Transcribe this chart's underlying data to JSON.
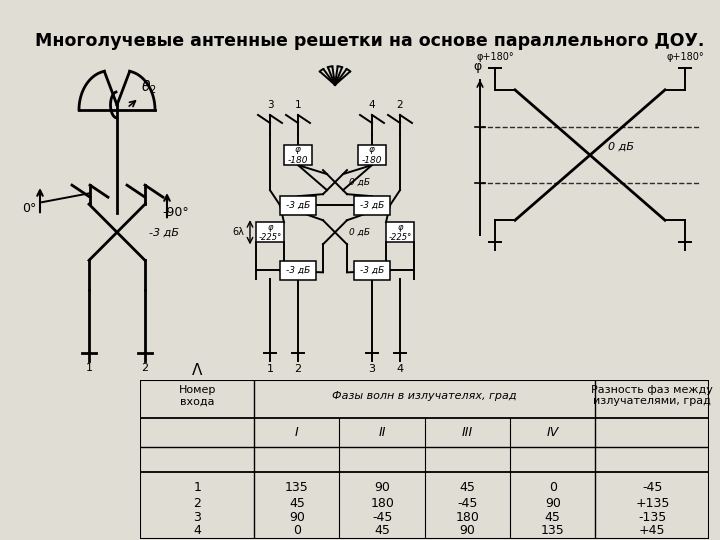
{
  "title": "Многолучевые антенные решетки на основе параллельного ДОУ.",
  "title_bg": "#9ab8c8",
  "title_fontsize": 12.5,
  "bg_color": "#e0ddd5",
  "table_header1": "Номер\nвхода",
  "table_header2": "Фазы волн в излучателях, град",
  "table_header3": "Разность фаз между\nизлучателями, град",
  "table_sub_headers": [
    "I",
    "II",
    "III",
    "IV"
  ],
  "table_data": [
    [
      1,
      135,
      90,
      45,
      0,
      "-45"
    ],
    [
      2,
      45,
      180,
      "-45",
      90,
      "+135"
    ],
    [
      3,
      90,
      "-45",
      180,
      45,
      "-135"
    ],
    [
      4,
      0,
      45,
      90,
      135,
      "+45"
    ]
  ]
}
